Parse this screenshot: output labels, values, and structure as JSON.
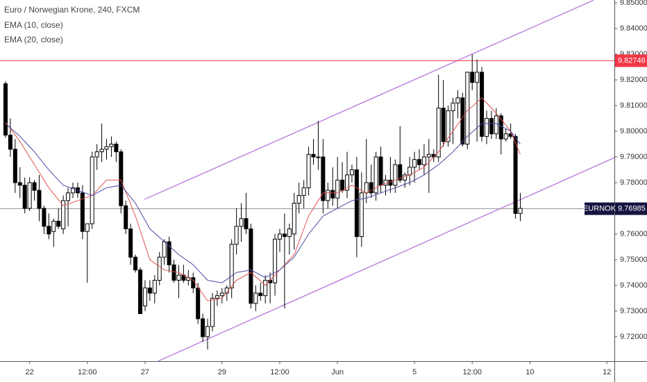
{
  "chart_data": {
    "type": "candlestick",
    "title": "Euro / Norwegian Krone, 240, FXCM",
    "open": [
      9.8185,
      9.7985,
      9.793,
      9.78,
      9.779,
      9.77,
      9.78,
      9.777,
      9.77,
      9.763,
      9.761,
      9.765,
      9.762,
      9.773,
      9.776,
      9.778,
      9.776,
      9.761,
      9.764,
      9.79,
      9.792,
      9.793,
      9.794,
      9.795,
      9.792,
      9.771,
      9.762,
      9.751,
      9.746,
      9.732,
      9.739,
      9.737,
      9.742,
      9.751,
      9.757,
      9.748,
      9.742,
      9.744,
      9.742,
      9.743,
      9.739,
      9.727,
      9.72,
      9.724,
      9.735,
      9.736,
      9.737,
      9.739,
      9.756,
      9.763,
      9.766,
      9.762,
      9.733,
      9.737,
      9.736,
      9.742,
      9.741,
      9.758,
      9.76,
      9.759,
      9.76,
      9.772,
      9.775,
      9.778,
      9.791,
      9.79,
      9.79,
      9.773,
      9.777,
      9.774,
      9.781,
      9.777,
      9.783,
      9.785,
      9.759,
      9.776,
      9.78,
      9.776,
      9.79,
      9.779,
      9.781,
      9.779,
      9.787,
      9.781,
      9.783,
      9.786,
      9.789,
      9.787,
      9.79,
      9.791,
      9.79,
      9.809,
      9.796,
      9.808,
      9.811,
      9.813,
      9.795,
      9.823,
      9.819,
      9.823,
      9.798,
      9.805,
      9.799,
      9.806,
      9.797,
      9.799,
      9.798,
      9.768
    ],
    "high": [
      9.8195,
      9.805,
      9.797,
      9.786,
      9.782,
      9.782,
      9.781,
      9.783,
      9.771,
      9.768,
      9.766,
      9.77,
      9.775,
      9.778,
      9.78,
      9.78,
      9.779,
      9.764,
      9.792,
      9.795,
      9.803,
      9.797,
      9.798,
      9.796,
      9.793,
      9.773,
      9.764,
      9.752,
      9.747,
      9.742,
      9.742,
      9.744,
      9.753,
      9.758,
      9.759,
      9.75,
      9.748,
      9.748,
      9.746,
      9.745,
      9.741,
      9.729,
      9.727,
      9.737,
      9.738,
      9.739,
      9.74,
      9.758,
      9.77,
      9.772,
      9.776,
      9.764,
      9.74,
      9.741,
      9.744,
      9.745,
      9.76,
      9.762,
      9.768,
      9.764,
      9.776,
      9.78,
      9.781,
      9.794,
      9.797,
      9.804,
      9.797,
      9.78,
      9.786,
      9.79,
      9.788,
      9.792,
      9.787,
      9.79,
      9.784,
      9.797,
      9.787,
      9.792,
      9.794,
      9.783,
      9.79,
      9.789,
      9.802,
      9.784,
      9.79,
      9.792,
      9.793,
      9.795,
      9.797,
      9.793,
      9.822,
      9.82,
      9.81,
      9.813,
      9.816,
      9.815,
      9.823,
      9.83,
      9.828,
      9.825,
      9.808,
      9.808,
      9.809,
      9.807,
      9.801,
      9.803,
      9.799,
      9.776
    ],
    "low": [
      9.7975,
      9.79,
      9.776,
      9.774,
      9.768,
      9.769,
      9.773,
      9.765,
      9.76,
      9.758,
      9.755,
      9.762,
      9.76,
      9.763,
      9.774,
      9.774,
      9.758,
      9.741,
      9.762,
      9.785,
      9.788,
      9.789,
      9.79,
      9.788,
      9.768,
      9.76,
      9.748,
      9.745,
      9.729,
      9.73,
      9.734,
      9.733,
      9.74,
      9.748,
      9.745,
      9.741,
      9.735,
      9.741,
      9.74,
      9.737,
      9.725,
      9.718,
      9.715,
      9.722,
      9.732,
      9.733,
      9.734,
      9.735,
      9.752,
      9.757,
      9.76,
      9.731,
      9.73,
      9.734,
      9.733,
      9.733,
      9.736,
      9.753,
      9.731,
      9.752,
      9.754,
      9.768,
      9.77,
      9.775,
      9.787,
      9.785,
      9.768,
      9.77,
      9.771,
      9.77,
      9.776,
      9.774,
      9.78,
      9.751,
      9.755,
      9.772,
      9.774,
      9.773,
      9.776,
      9.775,
      9.776,
      9.776,
      9.78,
      9.778,
      9.779,
      9.78,
      9.785,
      9.783,
      9.776,
      9.788,
      9.788,
      9.794,
      9.794,
      9.795,
      9.805,
      9.794,
      9.793,
      9.816,
      9.796,
      9.796,
      9.795,
      9.797,
      9.797,
      9.791,
      9.796,
      9.797,
      9.766,
      9.765
    ],
    "close": [
      9.7985,
      9.793,
      9.78,
      9.779,
      9.77,
      9.78,
      9.777,
      9.77,
      9.763,
      9.76,
      9.765,
      9.763,
      9.773,
      9.776,
      9.778,
      9.776,
      9.761,
      9.764,
      9.79,
      9.792,
      9.793,
      9.794,
      9.795,
      9.792,
      9.771,
      9.762,
      9.751,
      9.746,
      9.729,
      9.739,
      9.737,
      9.742,
      9.751,
      9.757,
      9.748,
      9.742,
      9.744,
      9.742,
      9.743,
      9.739,
      9.727,
      9.72,
      9.724,
      9.735,
      9.736,
      9.737,
      9.739,
      9.756,
      9.763,
      9.766,
      9.762,
      9.733,
      9.737,
      9.736,
      9.742,
      9.741,
      9.758,
      9.76,
      9.759,
      9.762,
      9.772,
      9.775,
      9.778,
      9.791,
      9.79,
      9.79,
      9.773,
      9.777,
      9.774,
      9.781,
      9.777,
      9.783,
      9.785,
      9.759,
      9.776,
      9.78,
      9.776,
      9.79,
      9.779,
      9.781,
      9.779,
      9.787,
      9.781,
      9.783,
      9.786,
      9.789,
      9.787,
      9.79,
      9.791,
      9.79,
      9.809,
      9.796,
      9.808,
      9.811,
      9.813,
      9.795,
      9.823,
      9.819,
      9.823,
      9.798,
      9.805,
      9.799,
      9.806,
      9.797,
      9.799,
      9.798,
      9.768,
      9.77
    ],
    "up_color": "#ffffff",
    "down_color": "#000000",
    "series": [
      {
        "name": "EMA (10, close)",
        "color": "#e0504f",
        "x": [
          0,
          3,
          6,
          9,
          12,
          15,
          18,
          21,
          24,
          27,
          30,
          33,
          36,
          39,
          42,
          45,
          48,
          51,
          54,
          57,
          60,
          63,
          66,
          69,
          72,
          75,
          78,
          81,
          84,
          87,
          90,
          93,
          96,
          99,
          102,
          105,
          107
        ],
        "values": [
          9.8035,
          9.796,
          9.787,
          9.778,
          9.771,
          9.773,
          9.775,
          9.781,
          9.781,
          9.767,
          9.75,
          9.746,
          9.745,
          9.742,
          9.734,
          9.735,
          9.742,
          9.745,
          9.74,
          9.746,
          9.752,
          9.767,
          9.776,
          9.776,
          9.779,
          9.776,
          9.779,
          9.781,
          9.783,
          9.786,
          9.792,
          9.8,
          9.808,
          9.813,
          9.807,
          9.8,
          9.791
        ]
      },
      {
        "name": "EMA (20, close)",
        "color": "#4b4ba6",
        "x": [
          0,
          3,
          6,
          9,
          12,
          15,
          18,
          21,
          24,
          27,
          30,
          33,
          36,
          39,
          42,
          45,
          48,
          51,
          54,
          57,
          60,
          63,
          66,
          69,
          72,
          75,
          78,
          81,
          84,
          87,
          90,
          93,
          96,
          99,
          102,
          105,
          107
        ],
        "values": [
          9.803,
          9.798,
          9.792,
          9.785,
          9.779,
          9.777,
          9.775,
          9.778,
          9.779,
          9.772,
          9.762,
          9.757,
          9.752,
          9.748,
          9.742,
          9.741,
          9.745,
          9.746,
          9.743,
          9.746,
          9.751,
          9.76,
          9.767,
          9.77,
          9.773,
          9.774,
          9.776,
          9.778,
          9.78,
          9.783,
          9.787,
          9.792,
          9.798,
          9.803,
          9.803,
          9.8,
          9.795
        ]
      }
    ],
    "hlines": [
      {
        "value": 9.82746,
        "color": "#f23645"
      },
      {
        "value": 9.76985,
        "name": "EURNOK",
        "color": "#9598a1",
        "label_color": "#131440"
      }
    ],
    "trendlines": [
      {
        "x": [
          28.9,
          122.2
        ],
        "y": [
          9.7735,
          9.851
        ],
        "color": "#c084e0"
      },
      {
        "x": [
          31.7,
          126.55
        ],
        "y": [
          9.7105,
          9.7897
        ],
        "color": "#c084e0"
      }
    ],
    "xlim": [
      -1.15,
      126.55
    ],
    "xticks": [
      {
        "value": 5,
        "label": "22"
      },
      {
        "value": 17,
        "label": "12:00"
      },
      {
        "value": 29,
        "label": "27"
      },
      {
        "value": 45,
        "label": "29"
      },
      {
        "value": 57,
        "label": "12:00"
      },
      {
        "value": 69,
        "label": "Jun"
      },
      {
        "value": 85,
        "label": "5"
      },
      {
        "value": 97,
        "label": "12:00"
      },
      {
        "value": 109,
        "label": "10"
      },
      {
        "value": 125,
        "label": "12"
      }
    ],
    "ylim": [
      9.7105,
      9.8511
    ],
    "yticks": [
      {
        "value": 9.72,
        "label": "9.72000"
      },
      {
        "value": 9.73,
        "label": "9.73000"
      },
      {
        "value": 9.74,
        "label": "9.74000"
      },
      {
        "value": 9.75,
        "label": "9.75000"
      },
      {
        "value": 9.76,
        "label": "9.76000"
      },
      {
        "value": 9.77,
        "label": "9.77000"
      },
      {
        "value": 9.78,
        "label": "9.78000"
      },
      {
        "value": 9.79,
        "label": "9.79000"
      },
      {
        "value": 9.8,
        "label": "9.80000"
      },
      {
        "value": 9.81,
        "label": "9.81000"
      },
      {
        "value": 9.82,
        "label": "9.82000"
      },
      {
        "value": 9.83,
        "label": "9.83000"
      },
      {
        "value": 9.84,
        "label": "9.84000"
      },
      {
        "value": 9.85,
        "label": "9.85000"
      }
    ],
    "grid": false
  }
}
